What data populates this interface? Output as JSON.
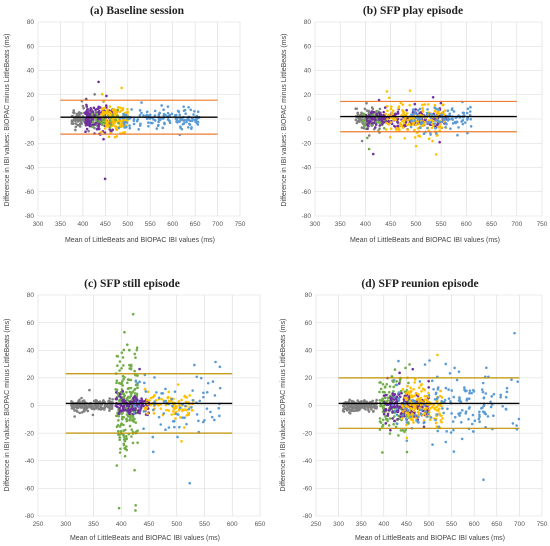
{
  "chart_data": [
    {
      "type": "scatter",
      "title_prefix": "(a)",
      "title": "Baseline session",
      "xlabel": "Mean of LittleBeats and BIOPAC IBI values (ms)",
      "ylabel": "Difference in IBI values: BIOPAC minus LittleBeats (ms)",
      "xlim": [
        300,
        750
      ],
      "ylim": [
        -80,
        80
      ],
      "xticks": [
        300,
        350,
        400,
        450,
        500,
        550,
        600,
        650,
        700,
        750
      ],
      "yticks": [
        -80,
        -60,
        -40,
        -20,
        0,
        20,
        40,
        60,
        80
      ],
      "mean_line": 1.5,
      "upper_loa": 15.5,
      "lower_loa": -12.5,
      "loa_color": "#ed7d31",
      "clusters": [
        {
          "color": "#808080",
          "x": [
            375,
            435
          ],
          "y_sd": 3.5,
          "n": 140
        },
        {
          "color": "#7030a0",
          "x": [
            405,
            470
          ],
          "y_sd": 5,
          "n": 180
        },
        {
          "color": "#ffc000",
          "x": [
            440,
            500
          ],
          "y_sd": 5,
          "n": 150
        },
        {
          "color": "#5b9bd5",
          "x": [
            480,
            660
          ],
          "y_sd": 4,
          "n": 160
        },
        {
          "color": "#70ad47",
          "x": [
            420,
            480
          ],
          "y_sd": 4,
          "n": 30
        }
      ]
    },
    {
      "type": "scatter",
      "title_prefix": "(b)",
      "title": "SFP play episode",
      "xlabel": "Mean of LittleBeats and BIOPAC IBI values (ms)",
      "ylabel": "Difference in IBI values: BIOPAC minus LittleBeats (ms)",
      "xlim": [
        300,
        750
      ],
      "ylim": [
        -80,
        80
      ],
      "xticks": [
        300,
        350,
        400,
        450,
        500,
        550,
        600,
        650,
        700,
        750
      ],
      "yticks": [
        -80,
        -60,
        -40,
        -20,
        0,
        20,
        40,
        60,
        80
      ],
      "mean_line": 2,
      "upper_loa": 14.5,
      "lower_loa": -10.5,
      "loa_color": "#ed7d31",
      "clusters": [
        {
          "color": "#808080",
          "x": [
            380,
            430
          ],
          "y_sd": 4,
          "n": 120
        },
        {
          "color": "#70ad47",
          "x": [
            395,
            440
          ],
          "y_sd": 4,
          "n": 60
        },
        {
          "color": "#7030a0",
          "x": [
            400,
            560
          ],
          "y_sd": 3.5,
          "n": 200
        },
        {
          "color": "#ffc000",
          "x": [
            440,
            560
          ],
          "y_sd": 7,
          "n": 170
        },
        {
          "color": "#5b9bd5",
          "x": [
            490,
            610
          ],
          "y_sd": 5,
          "n": 110
        }
      ]
    },
    {
      "type": "scatter",
      "title_prefix": "(c)",
      "title": "SFP still episode",
      "xlabel": "Mean of LittleBeats and BIOPAC IBI values (ms)",
      "ylabel": "Difference in IBI values: BIOPAC minus LittleBeats (ms)",
      "xlim": [
        250,
        650
      ],
      "ylim": [
        -80,
        80
      ],
      "xticks": [
        250,
        300,
        350,
        400,
        450,
        500,
        550,
        600,
        650
      ],
      "yticks": [
        -80,
        -60,
        -40,
        -20,
        0,
        20,
        40,
        60,
        80
      ],
      "mean_line": 1.5,
      "upper_loa": 23,
      "lower_loa": -20,
      "loa_color": "#bf9000",
      "clusters": [
        {
          "color": "#808080",
          "x": [
            310,
            385
          ],
          "y_sd": 2,
          "n": 180
        },
        {
          "color": "#70ad47",
          "x": [
            390,
            430
          ],
          "y_sd": 16,
          "n": 220
        },
        {
          "color": "#7030a0",
          "x": [
            390,
            450
          ],
          "y_sd": 4,
          "n": 130
        },
        {
          "color": "#ffc000",
          "x": [
            440,
            530
          ],
          "y_sd": 4,
          "n": 100
        },
        {
          "color": "#5b9bd5",
          "x": [
            420,
            580
          ],
          "y_sd": 12,
          "n": 80
        }
      ]
    },
    {
      "type": "scatter",
      "title_prefix": "(d)",
      "title": "SFP reunion episode",
      "xlabel": "Mean of LittleBeats and BIOPAC IBI values (ms)",
      "ylabel": "Difference in IBI values: BIOPAC minus LittleBeats (ms)",
      "xlim": [
        250,
        750
      ],
      "ylim": [
        -80,
        80
      ],
      "xticks": [
        250,
        300,
        350,
        400,
        450,
        500,
        550,
        600,
        650,
        700,
        750
      ],
      "yticks": [
        -80,
        -60,
        -40,
        -20,
        0,
        20,
        40,
        60,
        80
      ],
      "mean_line": 1.5,
      "upper_loa": 20,
      "lower_loa": -16.5,
      "loa_color": "#bf9000",
      "clusters": [
        {
          "color": "#808080",
          "x": [
            310,
            385
          ],
          "y_sd": 2,
          "n": 170
        },
        {
          "color": "#70ad47",
          "x": [
            390,
            460
          ],
          "y_sd": 9,
          "n": 150
        },
        {
          "color": "#7030a0",
          "x": [
            400,
            500
          ],
          "y_sd": 5,
          "n": 190
        },
        {
          "color": "#ffc000",
          "x": [
            440,
            530
          ],
          "y_sd": 7,
          "n": 160
        },
        {
          "color": "#5b9bd5",
          "x": [
            420,
            700
          ],
          "y_sd": 12,
          "n": 170
        }
      ]
    }
  ]
}
